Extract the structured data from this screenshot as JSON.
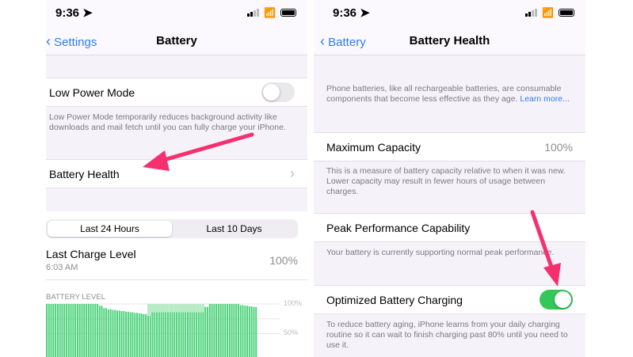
{
  "left": {
    "status": {
      "time": "9:36 ➤"
    },
    "nav": {
      "back": "Settings",
      "title": "Battery"
    },
    "low_power": {
      "label": "Low Power Mode",
      "on": false,
      "footer": "Low Power Mode temporarily reduces background activity like downloads and mail fetch until you can fully charge your iPhone."
    },
    "battery_health": {
      "label": "Battery Health",
      "chevron": "›"
    },
    "segments": [
      "Last 24 Hours",
      "Last 10 Days"
    ],
    "selected_segment": 0,
    "last_charge": {
      "label": "Last Charge Level",
      "time": "6:03 AM",
      "value": "100%"
    },
    "chart_data": {
      "type": "bar",
      "title": "BATTERY LEVEL",
      "ylim": [
        0,
        100
      ],
      "y_ticks": [
        "100%",
        "50%"
      ],
      "values": [
        100,
        100,
        100,
        100,
        100,
        100,
        100,
        100,
        100,
        100,
        100,
        100,
        97,
        93,
        91,
        90,
        89,
        88,
        87,
        86,
        85,
        84,
        83,
        80,
        86,
        86,
        86,
        86,
        86,
        86,
        86,
        86,
        86,
        86,
        86,
        86,
        95,
        100,
        100,
        100,
        100,
        100,
        100,
        100,
        98,
        97,
        96,
        95
      ],
      "charging_from": 23,
      "charging_to": 35,
      "colors": {
        "bar": "#4cd27a",
        "charging": "#b9ebc7"
      }
    }
  },
  "right": {
    "status": {
      "time": "9:36 ➤"
    },
    "nav": {
      "back": "Battery",
      "title": "Battery Health"
    },
    "intro": "Phone batteries, like all rechargeable batteries, are consumable components that become less effective as they age.",
    "learn_more": "Learn more...",
    "max_capacity": {
      "label": "Maximum Capacity",
      "value": "100%",
      "footer": "This is a measure of battery capacity relative to when it was new. Lower capacity may result in fewer hours of usage between charges."
    },
    "peak": {
      "label": "Peak Performance Capability",
      "footer": "Your battery is currently supporting normal peak performance."
    },
    "optimized": {
      "label": "Optimized Battery Charging",
      "on": true,
      "footer": "To reduce battery aging, iPhone learns from your daily charging routine so it can wait to finish charging past 80% until you need to use it."
    }
  },
  "colors": {
    "accent": "#2f7cf6",
    "toggle_on": "#34c759",
    "arrow": "#f5306e"
  }
}
